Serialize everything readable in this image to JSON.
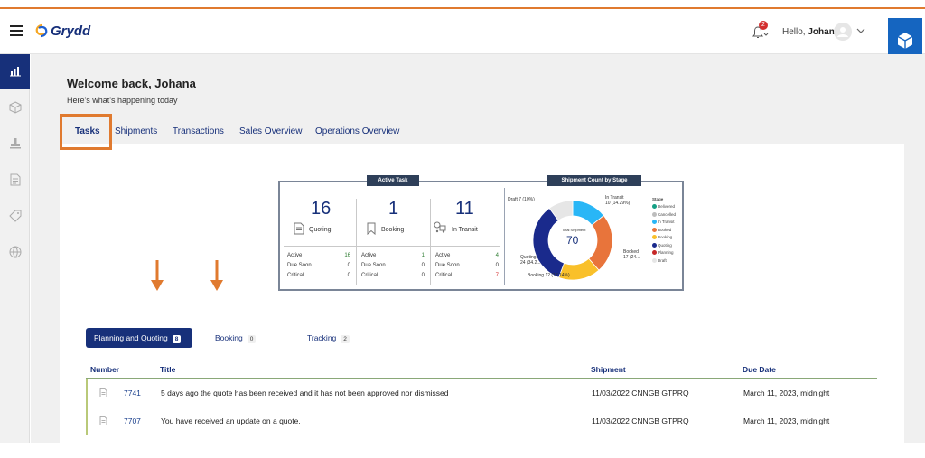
{
  "app": {
    "name": "Grydd"
  },
  "header": {
    "notification_count": "2",
    "greeting": "Hello,",
    "user_name": "Johana"
  },
  "colors": {
    "accent": "#e07a2f",
    "primary": "#17307a",
    "brand_box": "#1565c0"
  },
  "sidebar": {
    "items": [
      {
        "icon": "bar-chart-icon"
      },
      {
        "icon": "box-icon"
      },
      {
        "icon": "stamp-icon"
      },
      {
        "icon": "document-icon"
      },
      {
        "icon": "tag-icon"
      },
      {
        "icon": "globe-icon"
      }
    ]
  },
  "welcome": {
    "title": "Welcome back, Johana",
    "subtitle": "Here's what's happening today"
  },
  "tabs": [
    {
      "label": "Tasks",
      "active": true
    },
    {
      "label": "Shipments"
    },
    {
      "label": "Transactions"
    },
    {
      "label": "Sales Overview"
    },
    {
      "label": "Operations Overview"
    }
  ],
  "active_task": {
    "title": "Active Task",
    "stats": [
      {
        "count": "16",
        "label": "Quoting",
        "active": "16",
        "due_soon": "0",
        "critical": "0"
      },
      {
        "count": "1",
        "label": "Booking",
        "active": "1",
        "due_soon": "0",
        "critical": "0"
      },
      {
        "count": "11",
        "label": "In Transit",
        "active": "4",
        "due_soon": "0",
        "critical": "7"
      }
    ],
    "row_labels": {
      "active": "Active",
      "due_soon": "Due Soon",
      "critical": "Critical"
    }
  },
  "chart_data": {
    "type": "pie",
    "title": "Shipment Count by Stage",
    "center_label": "Total Shipment",
    "total": 70,
    "legend_title": "Stage",
    "legend": [
      "Delivered",
      "Cancelled",
      "In Transit",
      "Booked",
      "Booking",
      "Quoting",
      "Planning",
      "Draft"
    ],
    "slices": [
      {
        "name": "In Transit",
        "value": 10,
        "color": "#29b6f6"
      },
      {
        "name": "Booked",
        "value": 17,
        "color": "#e8743b"
      },
      {
        "name": "Booking",
        "value": 12,
        "color": "#f9c02a"
      },
      {
        "name": "Quoting",
        "value": 24,
        "color": "#1a2a8c"
      },
      {
        "name": "Draft",
        "value": 7,
        "color": "#e6e6e6"
      }
    ],
    "labels": {
      "draft": "Draft 7 (10%)",
      "in_transit": "In Transit\n10 (14.29%)",
      "booked": "Booked\n17 (24...",
      "quoting": "Quoting\n24 (34.2...",
      "booking": "Booking 12 (17.14%)"
    },
    "legend_colors": [
      "#16a085",
      "#bdbdbd",
      "#29b6f6",
      "#e8743b",
      "#f9c02a",
      "#1a2a8c",
      "#c62828",
      "#e6e6e6"
    ]
  },
  "subtabs": [
    {
      "label": "Planning and Quoting",
      "count": "8",
      "active": true
    },
    {
      "label": "Booking",
      "count": "0"
    },
    {
      "label": "Tracking",
      "count": "2"
    }
  ],
  "table": {
    "columns": [
      "Number",
      "Title",
      "Shipment",
      "Due Date"
    ],
    "rows": [
      {
        "number": "7741",
        "title": "5 days ago the quote has been received and it has not been approved nor dismissed",
        "shipment": "11/03/2022 CNNGB GTPRQ",
        "due": "March 11, 2023, midnight"
      },
      {
        "number": "7707",
        "title": "You have received an update on a quote.",
        "shipment": "11/03/2022 CNNGB GTPRQ",
        "due": "March 11, 2023, midnight"
      }
    ]
  }
}
